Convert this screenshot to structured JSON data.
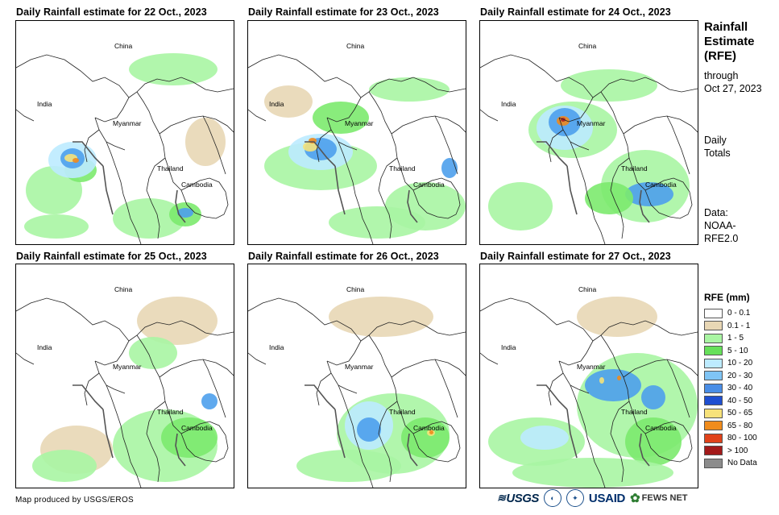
{
  "panels": [
    {
      "title": "Daily Rainfall estimate for 22 Oct., 2023",
      "rain": [
        [
          "#a9f5a3",
          12,
          180,
          70,
          60
        ],
        [
          "#7cea6e",
          60,
          170,
          40,
          30
        ],
        [
          "#bdebff",
          40,
          150,
          60,
          45
        ],
        [
          "#4ea0ec",
          55,
          158,
          30,
          25
        ],
        [
          "#f5e27a",
          60,
          165,
          16,
          10
        ],
        [
          "#ef8a1d",
          70,
          170,
          8,
          6
        ],
        [
          "#a9f5a3",
          120,
          220,
          90,
          50
        ],
        [
          "#7cea6e",
          190,
          225,
          40,
          30
        ],
        [
          "#4ea0ec",
          200,
          232,
          20,
          12
        ],
        [
          "#a9f5a3",
          140,
          40,
          110,
          40
        ],
        [
          "#a9f5a3",
          10,
          240,
          80,
          30
        ],
        [
          "#e8d7b5",
          210,
          120,
          50,
          60
        ]
      ]
    },
    {
      "title": "Daily Rainfall estimate for 23 Oct., 2023",
      "rain": [
        [
          "#a9f5a3",
          20,
          150,
          140,
          60
        ],
        [
          "#7cea6e",
          80,
          100,
          70,
          40
        ],
        [
          "#bdebff",
          50,
          140,
          80,
          45
        ],
        [
          "#4ea0ec",
          70,
          145,
          40,
          28
        ],
        [
          "#f5e27a",
          68,
          150,
          18,
          12
        ],
        [
          "#ef8a1d",
          75,
          145,
          10,
          7
        ],
        [
          "#a9f5a3",
          170,
          200,
          100,
          60
        ],
        [
          "#4ea0ec",
          240,
          170,
          20,
          25
        ],
        [
          "#a9f5a3",
          100,
          230,
          120,
          40
        ],
        [
          "#a9f5a3",
          150,
          70,
          100,
          30
        ],
        [
          "#e8d7b5",
          20,
          80,
          60,
          40
        ]
      ]
    },
    {
      "title": "Daily Rainfall estimate for 24 Oct., 2023",
      "rain": [
        [
          "#a9f5a3",
          60,
          100,
          110,
          70
        ],
        [
          "#bdebff",
          70,
          105,
          70,
          55
        ],
        [
          "#4ea0ec",
          85,
          108,
          40,
          35
        ],
        [
          "#ef8a1d",
          95,
          118,
          16,
          12
        ],
        [
          "#b22222",
          100,
          120,
          6,
          5
        ],
        [
          "#a9f5a3",
          150,
          160,
          110,
          90
        ],
        [
          "#4ea0ec",
          180,
          200,
          60,
          30
        ],
        [
          "#7cea6e",
          130,
          200,
          60,
          40
        ],
        [
          "#a9f5a3",
          10,
          200,
          80,
          60
        ],
        [
          "#a9f5a3",
          100,
          60,
          120,
          40
        ]
      ]
    },
    {
      "title": "Daily Rainfall estimate for 25 Oct., 2023",
      "rain": [
        [
          "#a9f5a3",
          120,
          180,
          130,
          90
        ],
        [
          "#7cea6e",
          180,
          190,
          70,
          50
        ],
        [
          "#4ea0ec",
          230,
          160,
          20,
          20
        ],
        [
          "#e8d7b5",
          30,
          200,
          90,
          60
        ],
        [
          "#a9f5a3",
          20,
          230,
          80,
          40
        ],
        [
          "#e8d7b5",
          150,
          40,
          100,
          60
        ],
        [
          "#a9f5a3",
          140,
          90,
          60,
          40
        ]
      ]
    },
    {
      "title": "Daily Rainfall estimate for 26 Oct., 2023",
      "rain": [
        [
          "#a9f5a3",
          110,
          160,
          140,
          100
        ],
        [
          "#bdebff",
          120,
          170,
          60,
          60
        ],
        [
          "#4ea0ec",
          135,
          190,
          30,
          30
        ],
        [
          "#7cea6e",
          190,
          190,
          60,
          50
        ],
        [
          "#f5e27a",
          222,
          205,
          10,
          8
        ],
        [
          "#ef8a1d",
          225,
          206,
          5,
          5
        ],
        [
          "#a9f5a3",
          60,
          230,
          130,
          40
        ],
        [
          "#e8d7b5",
          100,
          40,
          130,
          50
        ]
      ]
    },
    {
      "title": "Daily Rainfall estimate for 27 Oct., 2023",
      "rain": [
        [
          "#a9f5a3",
          120,
          110,
          150,
          130
        ],
        [
          "#4ea0ec",
          130,
          130,
          70,
          40
        ],
        [
          "#f5e27a",
          148,
          140,
          6,
          8
        ],
        [
          "#ef8a1d",
          170,
          138,
          5,
          6
        ],
        [
          "#4ea0ec",
          200,
          150,
          30,
          30
        ],
        [
          "#7cea6e",
          180,
          190,
          70,
          60
        ],
        [
          "#a9f5a3",
          10,
          190,
          120,
          60
        ],
        [
          "#bdebff",
          50,
          200,
          60,
          30
        ],
        [
          "#a9f5a3",
          40,
          240,
          200,
          37
        ],
        [
          "#e8d7b5",
          120,
          40,
          100,
          50
        ]
      ]
    }
  ],
  "map_labels": {
    "china": "China",
    "india": "India",
    "myanmar": "Myanmar",
    "thailand": "Thailand",
    "cambodia": "Cambodia"
  },
  "side": {
    "title_1": "Rainfall",
    "title_2": "Estimate",
    "title_3": "(RFE)",
    "through": "through",
    "date": "Oct 27, 2023",
    "daily": "Daily",
    "totals": "Totals",
    "data_label": "Data:",
    "data_source_1": "NOAA-",
    "data_source_2": "RFE2.0"
  },
  "legend": {
    "title": "RFE (mm)",
    "items": [
      {
        "label": "0 - 0.1",
        "color": "#ffffff"
      },
      {
        "label": "0.1 - 1",
        "color": "#e8d7b5"
      },
      {
        "label": "1 - 5",
        "color": "#a9f5a3"
      },
      {
        "label": "5 - 10",
        "color": "#66e05a"
      },
      {
        "label": "10 - 20",
        "color": "#bdebff"
      },
      {
        "label": "20 - 30",
        "color": "#7fc4f5"
      },
      {
        "label": "30 - 40",
        "color": "#4a8ee6"
      },
      {
        "label": "40 - 50",
        "color": "#1f4fd1"
      },
      {
        "label": "50 - 65",
        "color": "#f7e27a"
      },
      {
        "label": "65 - 80",
        "color": "#f08c1c"
      },
      {
        "label": "80 - 100",
        "color": "#e0421a"
      },
      {
        "label": "> 100",
        "color": "#a31a1a"
      },
      {
        "label": "No Data",
        "color": "#8c8c8c"
      }
    ]
  },
  "credit": "Map produced by USGS/EROS",
  "logos": {
    "usgs": "USGS",
    "usaid": "USAID",
    "fews": "FEWS NET"
  }
}
